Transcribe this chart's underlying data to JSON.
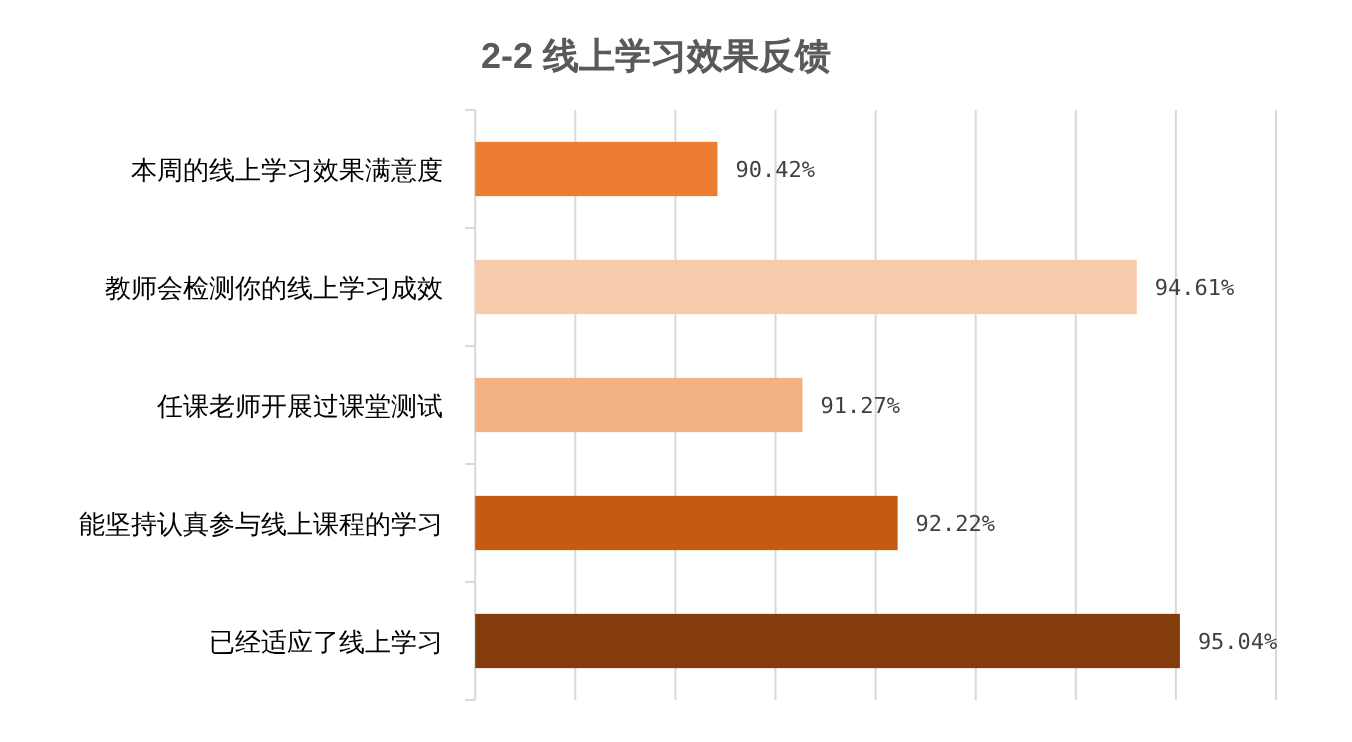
{
  "chart_data": {
    "type": "bar",
    "orientation": "horizontal",
    "title": "2-2  线上学习效果反馈",
    "categories": [
      "本周的线上学习效果满意度",
      "教师会检测你的线上学习成效",
      "任课老师开展过课堂测试",
      "能坚持认真参与线上课程的学习",
      "已经适应了线上学习"
    ],
    "values": [
      90.42,
      94.61,
      91.27,
      92.22,
      95.04
    ],
    "value_labels": [
      "90.42%",
      "94.61%",
      "91.27%",
      "92.22%",
      "95.04%"
    ],
    "colors": [
      "#ed7d31",
      "#f8cbad",
      "#f4b183",
      "#c55a11",
      "#843c0c"
    ],
    "xlim": [
      88,
      96
    ],
    "xticks": [
      {
        "value": 88,
        "label": null
      },
      {
        "value": 89,
        "label": null
      },
      {
        "value": 90,
        "label": null
      },
      {
        "value": 91,
        "label": null
      },
      {
        "value": 92,
        "label": null
      },
      {
        "value": 93,
        "label": null
      },
      {
        "value": 94,
        "label": null
      },
      {
        "value": 95,
        "label": null
      },
      {
        "value": 96,
        "label": null
      }
    ],
    "grid": "x"
  }
}
